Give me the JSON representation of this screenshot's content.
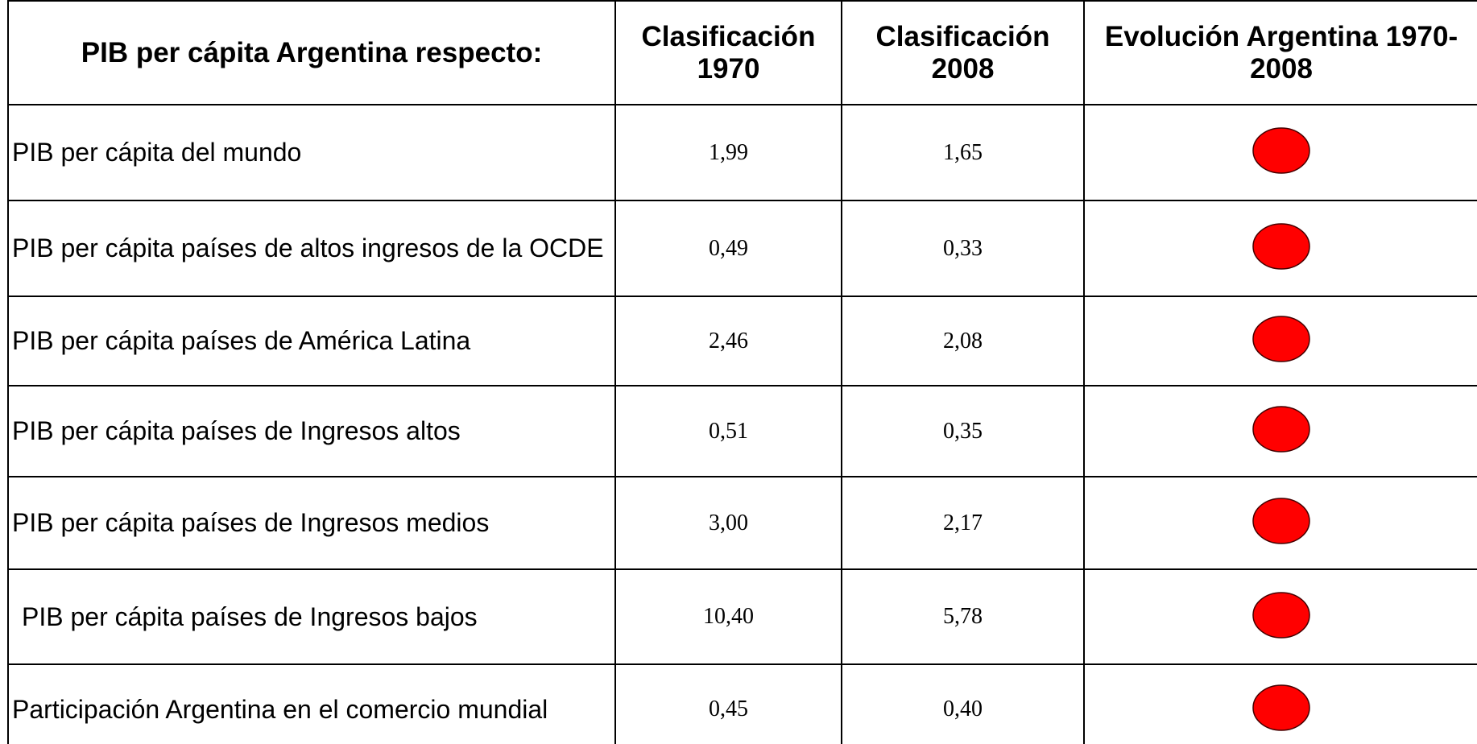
{
  "table": {
    "header": [
      "PIB per cápita Argentina respecto:",
      "Clasificación 1970",
      "Clasificación 2008",
      "Evolución Argentina 1970-2008"
    ],
    "rows": [
      [
        "PIB per cápita del mundo",
        "1,99",
        "1,65"
      ],
      [
        "PIB per cápita países de altos ingresos de la OCDE",
        "0,49",
        "0,33"
      ],
      [
        "PIB per cápita países de América Latina",
        "2,46",
        "2,08"
      ],
      [
        "PIB per cápita países de Ingresos altos",
        "0,51",
        "0,35"
      ],
      [
        "PIB per cápita países de Ingresos medios",
        "3,00",
        "2,17"
      ],
      [
        "PIB per cápita países de Ingresos bajos",
        "10,40",
        "5,78"
      ],
      [
        "Participación Argentina en el comercio mundial",
        "0,45",
        "0,40"
      ]
    ]
  }
}
